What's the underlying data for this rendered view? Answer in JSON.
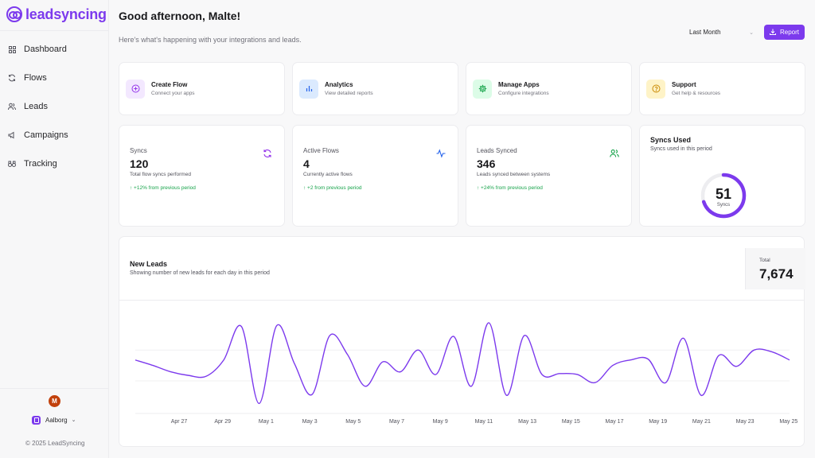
{
  "app": {
    "brand": "leadsyncing",
    "accent": "#7c3aed"
  },
  "sidebar": {
    "items": [
      {
        "label": "Dashboard",
        "icon": "grid-icon"
      },
      {
        "label": "Flows",
        "icon": "refresh-icon"
      },
      {
        "label": "Leads",
        "icon": "users-icon"
      },
      {
        "label": "Campaigns",
        "icon": "megaphone-icon"
      },
      {
        "label": "Tracking",
        "icon": "binoculars-icon"
      }
    ],
    "avatar_initial": "M",
    "workspace": "Aalborg",
    "copyright": "© 2025 LeadSyncing"
  },
  "header": {
    "greeting": "Good afternoon, Malte!",
    "subtitle": "Here's what's happening with your integrations and leads.",
    "period": "Last Month",
    "report_label": "Report"
  },
  "quick_actions": [
    {
      "title": "Create Flow",
      "desc": "Connect your apps",
      "icon": "plus-circle-icon",
      "color": "#9333ea",
      "bg": "#f3e8ff"
    },
    {
      "title": "Analytics",
      "desc": "View detailed reports",
      "icon": "bar-chart-icon",
      "color": "#2563eb",
      "bg": "#dbeafe"
    },
    {
      "title": "Manage Apps",
      "desc": "Configure integrations",
      "icon": "gear-icon",
      "color": "#16a34a",
      "bg": "#dcfce7"
    },
    {
      "title": "Support",
      "desc": "Get help & resources",
      "icon": "help-circle-icon",
      "color": "#ca8a04",
      "bg": "#fef3c7"
    }
  ],
  "stats": [
    {
      "label": "Syncs",
      "value": "120",
      "desc": "Total flow syncs performed",
      "trend": "↑ +12% from previous period",
      "icon": "sync-icon",
      "color": "#9333ea"
    },
    {
      "label": "Active Flows",
      "value": "4",
      "desc": "Currently active flows",
      "trend": "↑ +2 from previous period",
      "icon": "activity-icon",
      "color": "#2563eb"
    },
    {
      "label": "Leads Synced",
      "value": "346",
      "desc": "Leads synced between systems",
      "trend": "↑ +24% from previous period",
      "icon": "users-icon",
      "color": "#16a34a"
    }
  ],
  "syncs_used": {
    "title": "Syncs Used",
    "desc": "Syncs used in this period",
    "value": "51",
    "label": "Syncs",
    "fill_fraction": 0.7
  },
  "new_leads": {
    "title": "New Leads",
    "desc": "Showing number of new leads for each day in this period",
    "total_label": "Total",
    "total_value": "7,674"
  },
  "chart_data": {
    "type": "line",
    "x_tick_labels": [
      "Apr 27",
      "Apr 29",
      "May 1",
      "May 3",
      "May 5",
      "May 7",
      "May 9",
      "May 11",
      "May 13",
      "May 15",
      "May 17",
      "May 19",
      "May 21",
      "May 23",
      "May 25"
    ],
    "series": [
      {
        "values": [
          0.59,
          0.53,
          0.46,
          0.42,
          0.41,
          0.59,
          0.96,
          0.11,
          0.97,
          0.55,
          0.21,
          0.86,
          0.65,
          0.3,
          0.57,
          0.46,
          0.7,
          0.43,
          0.85,
          0.3,
          1.0,
          0.2,
          0.86,
          0.43,
          0.44,
          0.43,
          0.34,
          0.53,
          0.59,
          0.6,
          0.34,
          0.83,
          0.2,
          0.64,
          0.52,
          0.7,
          0.68,
          0.59
        ]
      }
    ],
    "ylim": [
      0,
      1
    ],
    "grid": true,
    "color": "#7c3aed"
  }
}
